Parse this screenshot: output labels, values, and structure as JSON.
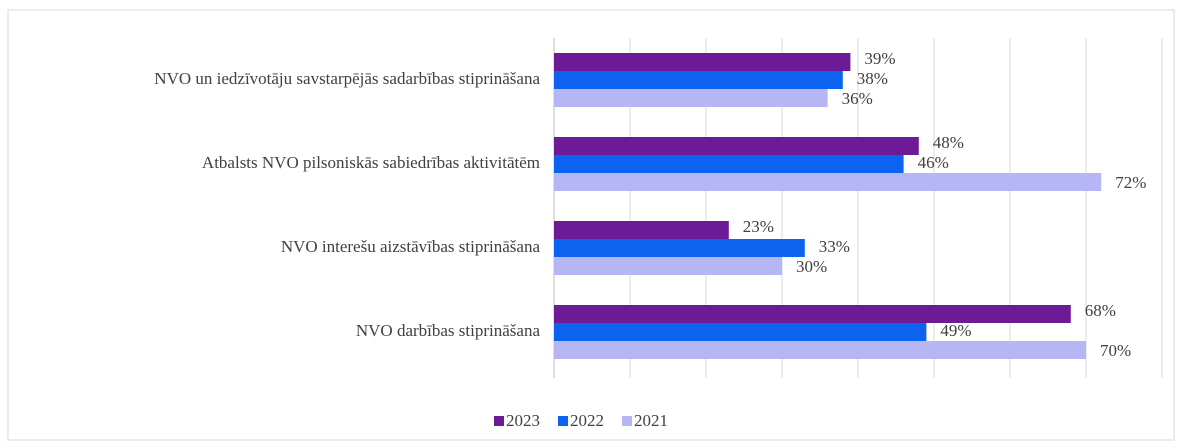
{
  "chart_data": {
    "type": "barh",
    "categories": [
      "NVO un iedzīvotāju savstarpējās sadarbības stiprināšana",
      "Atbalsts NVO pilsoniskās sabiedrības aktivitātēm",
      "NVO interešu aizstāvības stiprināšana",
      "NVO darbības stiprināšana"
    ],
    "series": [
      {
        "name": "2023",
        "color": "#6c1a96",
        "values": [
          39,
          48,
          23,
          68
        ],
        "value_labels": [
          "39%",
          "48%",
          "23%",
          "68%"
        ]
      },
      {
        "name": "2022",
        "color": "#0b63f0",
        "values": [
          38,
          46,
          33,
          49
        ],
        "value_labels": [
          "38%",
          "46%",
          "33%",
          "49%"
        ]
      },
      {
        "name": "2021",
        "color": "#b6b6f4",
        "values": [
          36,
          72,
          30,
          70
        ],
        "value_labels": [
          "36%",
          "72%",
          "30%",
          "70%"
        ]
      }
    ],
    "xlim": [
      0,
      80
    ],
    "xticks": [
      0,
      10,
      20,
      30,
      40,
      50,
      60,
      70,
      80
    ],
    "grid": true,
    "legend": "bottom"
  }
}
